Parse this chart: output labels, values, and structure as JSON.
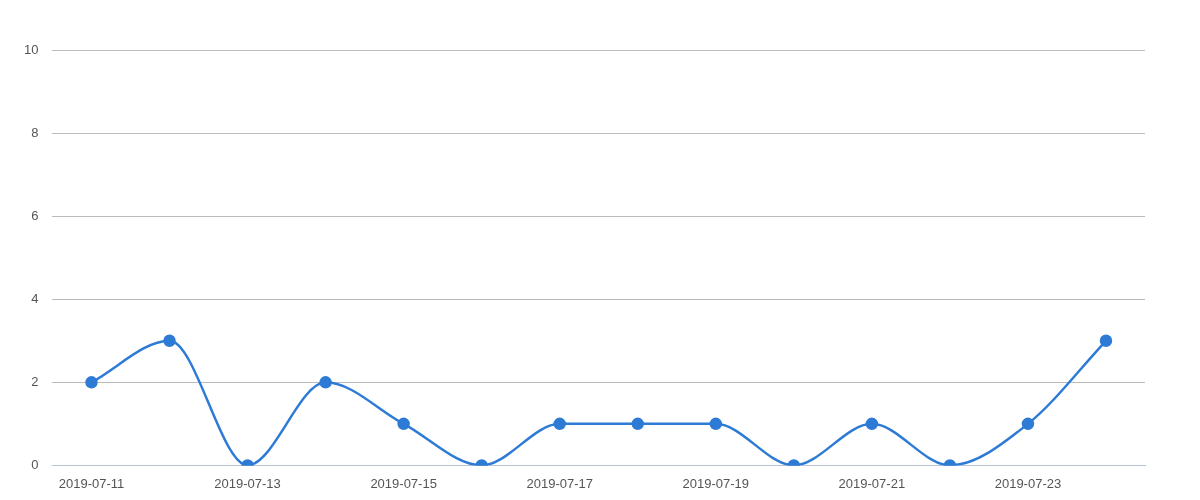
{
  "chart_data": {
    "type": "line",
    "categories": [
      "2019-07-11",
      null,
      "2019-07-13",
      null,
      "2019-07-15",
      null,
      "2019-07-17",
      null,
      "2019-07-19",
      null,
      "2019-07-21",
      null,
      "2019-07-23",
      null
    ],
    "values": [
      2,
      3,
      0,
      2,
      1,
      0,
      1,
      1,
      1,
      0,
      1,
      0,
      1,
      3
    ],
    "color": "#2e7bd6",
    "ylim": [
      0,
      10
    ],
    "yticks": [
      0,
      2,
      4,
      6,
      8,
      10
    ],
    "grid": "y",
    "marker": "circle",
    "line_style": "solid"
  }
}
